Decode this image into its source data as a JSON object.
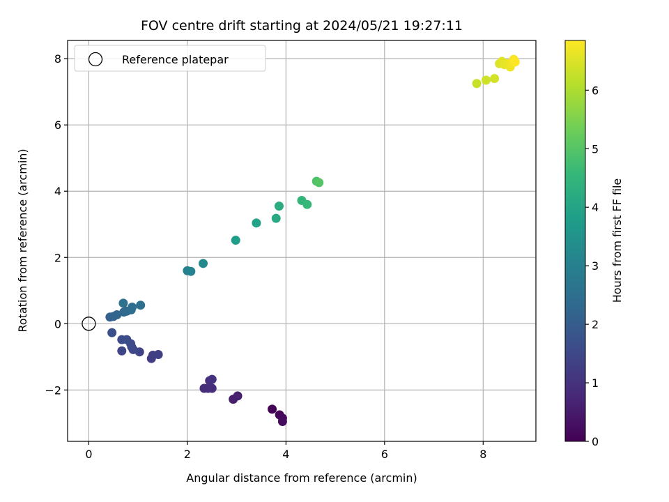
{
  "chart_data": {
    "type": "scatter",
    "title": "FOV centre drift starting at 2024/05/21 19:27:11",
    "xlabel": "Angular distance from reference (arcmin)",
    "ylabel": "Rotation from reference (arcmin)",
    "xlim": [
      -0.43,
      9.07
    ],
    "ylim": [
      -3.55,
      8.55
    ],
    "xticks": [
      0,
      2,
      4,
      6,
      8
    ],
    "xtick_labels": [
      "0",
      "2",
      "4",
      "6",
      "8"
    ],
    "yticks": [
      -2,
      0,
      2,
      4,
      6,
      8
    ],
    "ytick_labels": [
      "−2",
      "0",
      "2",
      "4",
      "6",
      "8"
    ],
    "grid": true,
    "legend": {
      "position": "top-left",
      "entries": [
        "Reference platepar"
      ]
    },
    "reference_point": {
      "x": 0,
      "y": 0
    },
    "colorbar": {
      "label": "Hours from first FF file",
      "range": [
        0,
        6.85
      ],
      "ticks": [
        0,
        1,
        2,
        3,
        4,
        5,
        6
      ],
      "tick_labels": [
        "0",
        "1",
        "2",
        "3",
        "4",
        "5",
        "6"
      ],
      "colormap": "viridis"
    },
    "colormap_stops": [
      "#440154",
      "#482878",
      "#3e4989",
      "#31688e",
      "#26828e",
      "#1f9e89",
      "#35b779",
      "#6ece58",
      "#b5de2b",
      "#fde725"
    ],
    "points": [
      {
        "x": 3.72,
        "y": -2.58,
        "h": 0.05
      },
      {
        "x": 3.87,
        "y": -2.75,
        "h": 0.1
      },
      {
        "x": 3.93,
        "y": -2.85,
        "h": 0.15
      },
      {
        "x": 3.93,
        "y": -2.95,
        "h": 0.2
      },
      {
        "x": 2.93,
        "y": -2.28,
        "h": 0.55
      },
      {
        "x": 3.02,
        "y": -2.18,
        "h": 0.6
      },
      {
        "x": 2.34,
        "y": -1.95,
        "h": 0.85
      },
      {
        "x": 2.42,
        "y": -1.95,
        "h": 0.88
      },
      {
        "x": 2.5,
        "y": -1.95,
        "h": 0.9
      },
      {
        "x": 2.45,
        "y": -1.72,
        "h": 0.95
      },
      {
        "x": 2.5,
        "y": -1.68,
        "h": 0.98
      },
      {
        "x": 1.27,
        "y": -1.05,
        "h": 1.25
      },
      {
        "x": 1.3,
        "y": -0.95,
        "h": 1.28
      },
      {
        "x": 1.41,
        "y": -0.93,
        "h": 1.3
      },
      {
        "x": 0.67,
        "y": -0.82,
        "h": 1.45
      },
      {
        "x": 1.03,
        "y": -0.85,
        "h": 1.4
      },
      {
        "x": 0.9,
        "y": -0.78,
        "h": 1.5
      },
      {
        "x": 0.87,
        "y": -0.7,
        "h": 1.52
      },
      {
        "x": 0.85,
        "y": -0.6,
        "h": 1.55
      },
      {
        "x": 0.67,
        "y": -0.48,
        "h": 1.6
      },
      {
        "x": 0.77,
        "y": -0.48,
        "h": 1.62
      },
      {
        "x": 0.47,
        "y": -0.27,
        "h": 1.7
      },
      {
        "x": 0.43,
        "y": 0.2,
        "h": 2.1
      },
      {
        "x": 0.5,
        "y": 0.22,
        "h": 2.15
      },
      {
        "x": 0.57,
        "y": 0.27,
        "h": 2.2
      },
      {
        "x": 0.71,
        "y": 0.35,
        "h": 2.3
      },
      {
        "x": 0.77,
        "y": 0.38,
        "h": 2.35
      },
      {
        "x": 0.86,
        "y": 0.42,
        "h": 2.4
      },
      {
        "x": 0.88,
        "y": 0.5,
        "h": 2.45
      },
      {
        "x": 1.05,
        "y": 0.56,
        "h": 2.5
      },
      {
        "x": 0.7,
        "y": 0.62,
        "h": 2.55
      },
      {
        "x": 2.0,
        "y": 1.6,
        "h": 3.0
      },
      {
        "x": 2.07,
        "y": 1.58,
        "h": 3.05
      },
      {
        "x": 2.32,
        "y": 1.82,
        "h": 3.2
      },
      {
        "x": 2.98,
        "y": 2.52,
        "h": 3.8
      },
      {
        "x": 3.4,
        "y": 3.04,
        "h": 3.95
      },
      {
        "x": 3.8,
        "y": 3.18,
        "h": 4.1
      },
      {
        "x": 3.86,
        "y": 3.55,
        "h": 4.2
      },
      {
        "x": 4.32,
        "y": 3.72,
        "h": 4.5
      },
      {
        "x": 4.43,
        "y": 3.6,
        "h": 4.6
      },
      {
        "x": 4.62,
        "y": 4.3,
        "h": 4.9
      },
      {
        "x": 4.67,
        "y": 4.26,
        "h": 5.0
      },
      {
        "x": 7.87,
        "y": 7.25,
        "h": 6.3
      },
      {
        "x": 8.06,
        "y": 7.35,
        "h": 6.35
      },
      {
        "x": 8.23,
        "y": 7.4,
        "h": 6.4
      },
      {
        "x": 8.33,
        "y": 7.85,
        "h": 6.5
      },
      {
        "x": 8.38,
        "y": 7.92,
        "h": 6.55
      },
      {
        "x": 8.43,
        "y": 7.82,
        "h": 6.6
      },
      {
        "x": 8.5,
        "y": 7.85,
        "h": 6.65
      },
      {
        "x": 8.55,
        "y": 7.75,
        "h": 6.7
      },
      {
        "x": 8.6,
        "y": 7.88,
        "h": 6.75
      },
      {
        "x": 8.62,
        "y": 7.98,
        "h": 6.8
      },
      {
        "x": 8.65,
        "y": 7.9,
        "h": 6.85
      }
    ]
  }
}
